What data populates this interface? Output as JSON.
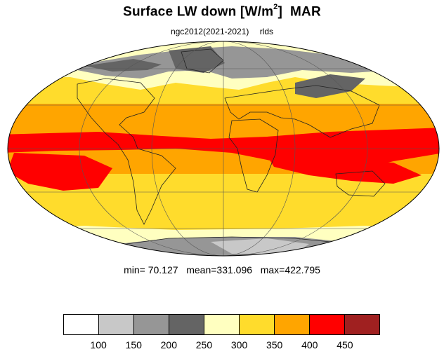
{
  "title": {
    "main": "Surface LW down [W/m",
    "sup": "2",
    "close": "]",
    "month": "MAR"
  },
  "subtitle": {
    "experiment": "ngc2012(2021-2021)",
    "variable": "rlds"
  },
  "stats": {
    "min_label": "min=",
    "min": "70.127",
    "mean_label": "mean=",
    "mean": "331.096",
    "max_label": "max=",
    "max": "422.795"
  },
  "colorbar": {
    "colors": [
      "#ffffff",
      "#c8c8c8",
      "#969696",
      "#646464",
      "#ffffc0",
      "#ffdc2c",
      "#ffa500",
      "#ff0000",
      "#a02020"
    ],
    "ticks": [
      "100",
      "150",
      "200",
      "250",
      "300",
      "350",
      "400",
      "450"
    ]
  }
}
